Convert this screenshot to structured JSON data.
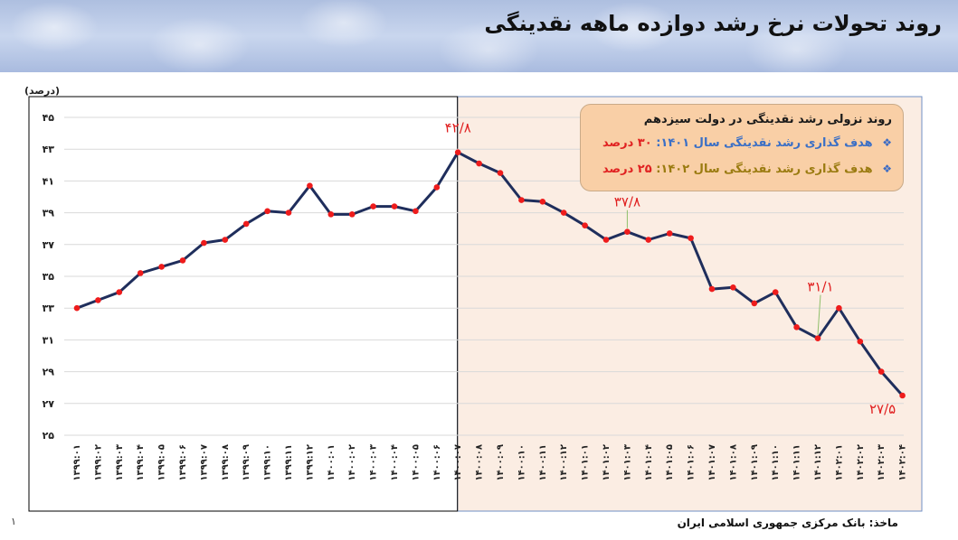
{
  "title": "روند تحولات نرخ رشد دوازده ماهه نقدینگی",
  "footer": {
    "source": "ماخذ: بانک مرکزی جمهوری اسلامی ایران",
    "slide_number": "۱"
  },
  "legend": {
    "heading": "روند نزولی رشد نقدینگی در دولت سیزدهم",
    "items": [
      {
        "label": "هدف گذاری رشد نقدینگی سال ۱۴۰۱:",
        "value": "۳۰ درصد",
        "label_color": "#3a6fc6",
        "value_color": "#e02020",
        "bullet": "❖"
      },
      {
        "label": "هدف گذاری رشد نقدینگی سال ۱۴۰۲:",
        "value": "۲۵ درصد",
        "label_color": "#9a7b10",
        "value_color": "#e02020",
        "bullet": "❖"
      }
    ]
  },
  "chart_data": {
    "type": "line",
    "ylabel": "(درصد)",
    "ylim": [
      25,
      45
    ],
    "yticks": [
      "۲۵",
      "۲۷",
      "۲۹",
      "۳۱",
      "۳۳",
      "۳۵",
      "۳۷",
      "۳۹",
      "۴۱",
      "۴۳",
      "۴۵"
    ],
    "categories": [
      "۱۳۹۹:۰۱",
      "۱۳۹۹:۰۲",
      "۱۳۹۹:۰۳",
      "۱۳۹۹:۰۴",
      "۱۳۹۹:۰۵",
      "۱۳۹۹:۰۶",
      "۱۳۹۹:۰۷",
      "۱۳۹۹:۰۸",
      "۱۳۹۹:۰۹",
      "۱۳۹۹:۱۰",
      "۱۳۹۹:۱۱",
      "۱۳۹۹:۱۲",
      "۱۴۰۰:۰۱",
      "۱۴۰۰:۰۲",
      "۱۴۰۰:۰۳",
      "۱۴۰۰:۰۴",
      "۱۴۰۰:۰۵",
      "۱۴۰۰:۰۶",
      "۱۴۰۰:۰۷",
      "۱۴۰۰:۰۸",
      "۱۴۰۰:۰۹",
      "۱۴۰۰:۱۰",
      "۱۴۰۰:۱۱",
      "۱۴۰۰:۱۲",
      "۱۴۰۱:۰۱",
      "۱۴۰۱:۰۲",
      "۱۴۰۱:۰۳",
      "۱۴۰۱:۰۴",
      "۱۴۰۱:۰۵",
      "۱۴۰۱:۰۶",
      "۱۴۰۱:۰۷",
      "۱۴۰۱:۰۸",
      "۱۴۰۱:۰۹",
      "۱۴۰۱:۱۰",
      "۱۴۰۱:۱۱",
      "۱۴۰۱:۱۲",
      "۱۴۰۲:۰۱",
      "۱۴۰۲:۰۲",
      "۱۴۰۲:۰۳",
      "۱۴۰۲:۰۴"
    ],
    "series": [
      {
        "values": [
          33.0,
          33.5,
          34.0,
          35.2,
          35.6,
          36.0,
          37.1,
          37.3,
          38.3,
          39.1,
          39.0,
          40.7,
          38.9,
          38.9,
          39.4,
          39.4,
          39.1,
          40.6,
          42.8,
          42.1,
          41.5,
          39.8,
          39.7,
          39.0,
          38.2,
          37.3,
          37.8,
          37.3,
          37.7,
          37.4,
          34.2,
          34.3,
          33.3,
          34.0,
          31.8,
          31.1,
          33.0,
          30.9,
          29.0,
          27.5
        ]
      }
    ],
    "annotations": [
      {
        "index": 18,
        "text": "۴۲/۸",
        "dx": 0,
        "dy": -22,
        "color": "#e02020"
      },
      {
        "index": 26,
        "text": "۳۷/۸",
        "dx": 0,
        "dy": -28,
        "color": "#e02020"
      },
      {
        "index": 35,
        "text": "۳۱/۱",
        "dx": 3,
        "dy": -52,
        "color": "#e02020"
      },
      {
        "index": 39,
        "text": "۲۷/۵",
        "dx": -22,
        "dy": 20,
        "color": "#e02020"
      }
    ],
    "highlight_start_index": 18,
    "line_color": "#1f2e5c",
    "marker_color": "#ee1c1c",
    "highlight_fill": "#fbede3",
    "highlight_border": "#6f8fc4",
    "grid": true
  }
}
